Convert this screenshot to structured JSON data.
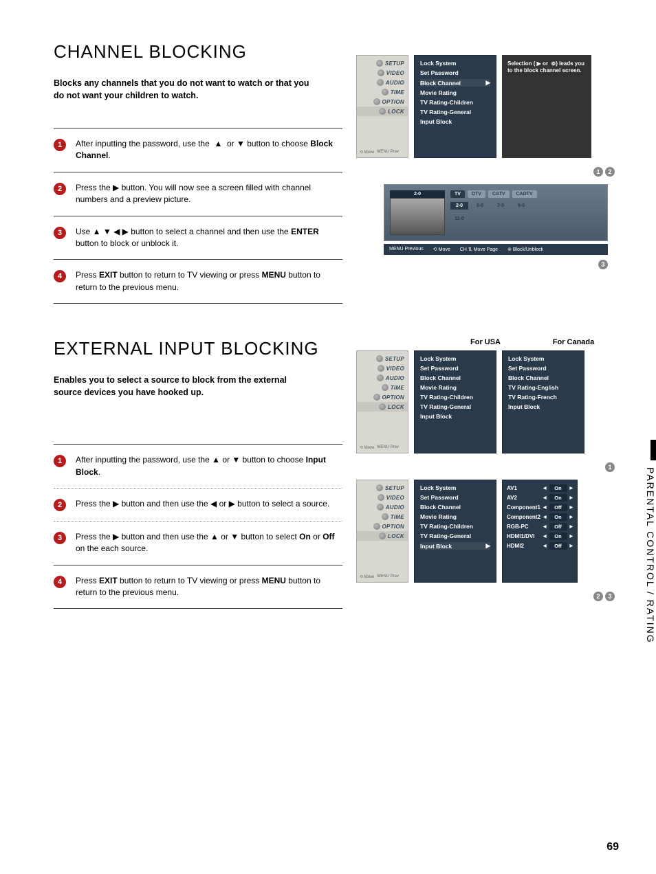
{
  "page_number": "69",
  "side_tab": "PARENTAL CONTROL / RATING",
  "section1": {
    "title": "CHANNEL BLOCKING",
    "intro": "Blocks any channels that you do not want to watch or that you do not want your children to watch.",
    "steps": [
      {
        "n": "1",
        "html": "After inputting the password, use the &nbsp;▲&nbsp; or ▼ button to choose <b>Block Channel</b>."
      },
      {
        "n": "2",
        "html": "Press the ▶ button. You will now see a screen filled with channel numbers and a preview picture."
      },
      {
        "n": "3",
        "html": "Use ▲ ▼ ◀ ▶ button to select a channel and then use the <b>ENTER</b> button to block or unblock it."
      },
      {
        "n": "4",
        "html": "Press <b>EXIT</b> button to return to TV viewing or press <b>MENU</b> button to return to the previous menu."
      }
    ],
    "osd_sidebar": [
      "SETUP",
      "VIDEO",
      "AUDIO",
      "TIME",
      "OPTION",
      "LOCK"
    ],
    "osd_footer_left": "Move",
    "osd_footer_right": "Prev",
    "osd_menu": [
      "Lock System",
      "Set Password",
      "Block Channel",
      "Movie Rating",
      "TV Rating-Children",
      "TV Rating-General",
      "Input Block"
    ],
    "osd_menu_selected": 2,
    "osd_hint": "Selection ( ▶ or  ⊚) leads you to the block channel screen.",
    "refs_a": [
      "1",
      "2"
    ],
    "channel_screen": {
      "preview_label": "2-0",
      "tabs": [
        "TV",
        "DTV",
        "CATV",
        "CADTV"
      ],
      "active_tab": 0,
      "cells_row1": [
        "2-0",
        "6-0",
        "7-0",
        "9-0"
      ],
      "cells_row2": [
        "11-0"
      ],
      "sel": 0,
      "footer": [
        "MENU Previous",
        "⟲ Move",
        "CH ⇅ Move Page",
        "⊚ Block/Unblock"
      ]
    },
    "refs_b": [
      "3"
    ]
  },
  "section2": {
    "title": "EXTERNAL INPUT BLOCKING",
    "intro": "Enables you to select a source to block from the external source devices you have hooked up.",
    "region_usa": "For USA",
    "region_can": "For Canada",
    "steps": [
      {
        "n": "1",
        "html": "After inputting the password, use the ▲ or ▼ button to choose <b>Input Block</b>."
      },
      {
        "n": "2",
        "html": "Press the ▶ button and then use the ◀ or ▶ button to select a source."
      },
      {
        "n": "3",
        "html": "Press the ▶ button and then use the ▲ or ▼ button to select <b>On</b> or <b>Off</b> on the each source."
      },
      {
        "n": "4",
        "html": "Press <b>EXIT</b> button to return to TV viewing or press <b>MENU</b> button to return to the previous menu."
      }
    ],
    "osd_usa": [
      "Lock System",
      "Set Password",
      "Block Channel",
      "Movie Rating",
      "TV Rating-Children",
      "TV Rating-General",
      "Input Block"
    ],
    "osd_can": [
      "Lock System",
      "Set Password",
      "Block Channel",
      "TV Rating-English",
      "TV Rating-French",
      "Input Block"
    ],
    "refs_a": [
      "1"
    ],
    "osd_input_menu": [
      "Lock System",
      "Set Password",
      "Block Channel",
      "Movie Rating",
      "TV Rating-Children",
      "TV Rating-General",
      "Input Block"
    ],
    "osd_input_selected": 6,
    "inputs": [
      {
        "label": "AV1",
        "value": "On"
      },
      {
        "label": "AV2",
        "value": "On"
      },
      {
        "label": "Component1",
        "value": "Off"
      },
      {
        "label": "Component2",
        "value": "On"
      },
      {
        "label": "RGB-PC",
        "value": "Off"
      },
      {
        "label": "HDMI1/DVI",
        "value": "On"
      },
      {
        "label": "HDMI2",
        "value": "Off"
      }
    ],
    "refs_b": [
      "2",
      "3"
    ]
  },
  "colors": {
    "red": "#b71c1c",
    "osd_bg": "#2a3a4a",
    "gray_badge": "#888"
  }
}
